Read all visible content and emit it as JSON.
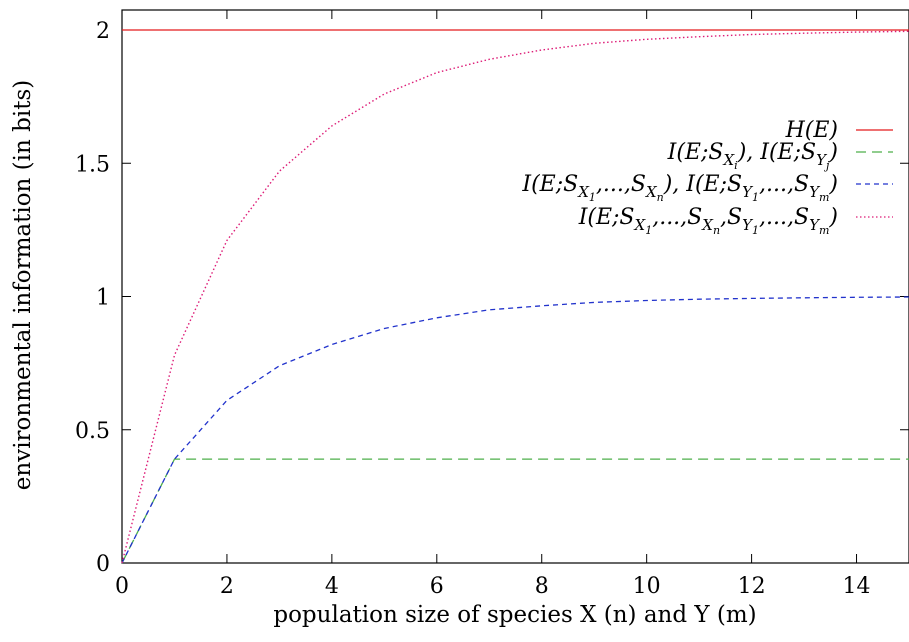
{
  "chart_data": {
    "type": "line",
    "xlabel": "population size of species X (n) and Y (m)",
    "ylabel": "environmental information (in bits)",
    "xlim": [
      0,
      15
    ],
    "ylim": [
      0,
      2
    ],
    "xticks": [
      0,
      2,
      4,
      6,
      8,
      10,
      12,
      14
    ],
    "yticks": [
      0,
      0.5,
      1,
      1.5,
      2
    ],
    "ytick_labels": [
      "0",
      "0.5",
      "1",
      "1.5",
      "2"
    ],
    "grid": false,
    "legend_position": "top-right",
    "series": [
      {
        "name": "H(E)",
        "color": "#e41a1c",
        "style": "solid",
        "x": [
          0,
          15
        ],
        "y": [
          2.0,
          2.0
        ]
      },
      {
        "name": "I(E;S_{X_i}), I(E;S_{Y_j})",
        "color": "#4daf4a",
        "style": "dashed",
        "x": [
          0,
          1,
          2,
          3,
          4,
          5,
          6,
          7,
          8,
          9,
          10,
          11,
          12,
          13,
          14,
          15
        ],
        "y": [
          0,
          0.39,
          0.39,
          0.39,
          0.39,
          0.39,
          0.39,
          0.39,
          0.39,
          0.39,
          0.39,
          0.39,
          0.39,
          0.39,
          0.39,
          0.39
        ]
      },
      {
        "name": "I(E;S_{X_1},...,S_{X_n}), I(E;S_{Y_1},...,S_{Y_m})",
        "color": "#2233cc",
        "style": "dashdot",
        "x": [
          0,
          1,
          2,
          3,
          4,
          5,
          6,
          7,
          8,
          9,
          10,
          11,
          12,
          13,
          14,
          15
        ],
        "y": [
          0,
          0.39,
          0.61,
          0.74,
          0.82,
          0.88,
          0.92,
          0.95,
          0.965,
          0.978,
          0.985,
          0.99,
          0.993,
          0.995,
          0.997,
          0.998
        ]
      },
      {
        "name": "I(E;S_{X_1},...,S_{X_n},S_{Y_1},...,S_{Y_m})",
        "color": "#dd1c77",
        "style": "dotted",
        "x": [
          0,
          1,
          2,
          3,
          4,
          5,
          6,
          7,
          8,
          9,
          10,
          11,
          12,
          13,
          14,
          15
        ],
        "y": [
          0,
          0.78,
          1.21,
          1.47,
          1.64,
          1.76,
          1.84,
          1.89,
          1.925,
          1.95,
          1.965,
          1.975,
          1.983,
          1.988,
          1.992,
          1.995
        ]
      }
    ]
  }
}
